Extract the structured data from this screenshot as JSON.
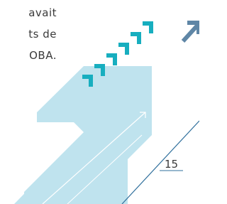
{
  "paragraph": {
    "lines": [
      "avait",
      "ts de",
      "OBA."
    ]
  },
  "page_number": "15"
}
